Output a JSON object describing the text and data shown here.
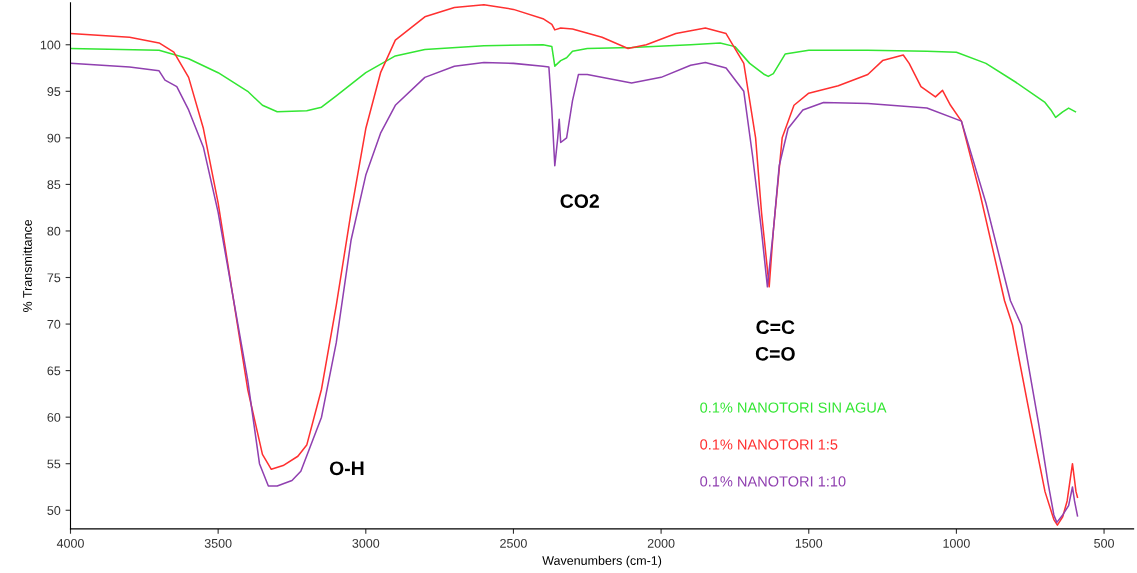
{
  "chart_data": {
    "type": "line",
    "xlabel": "Wavenumbers (cm-1)",
    "ylabel": "% Transmittance",
    "xlim": [
      4000,
      400
    ],
    "ylim": [
      48,
      104.5
    ],
    "xticks": [
      4000,
      3500,
      3000,
      2500,
      2000,
      1500,
      1000,
      500
    ],
    "yticks": [
      50,
      55,
      60,
      65,
      70,
      75,
      80,
      85,
      90,
      95,
      100
    ],
    "grid": false,
    "legend": "bottom right",
    "marker": "none",
    "line_style": "solid",
    "annotations": [
      "O-H",
      "CO2",
      "C=C\nC=O"
    ],
    "series": [
      {
        "name": "0.1% NANOTORI SIN AGUA",
        "color": "#33e633",
        "x": [
          4000,
          3700,
          3600,
          3500,
          3400,
          3350,
          3300,
          3200,
          3150,
          3100,
          3000,
          2900,
          2800,
          2600,
          2400,
          2370,
          2360,
          2340,
          2320,
          2300,
          2250,
          2100,
          1900,
          1800,
          1750,
          1700,
          1650,
          1637,
          1620,
          1580,
          1500,
          1300,
          1100,
          1000,
          900,
          800,
          700,
          680,
          664,
          640,
          620,
          597
        ],
        "values": [
          99.6,
          99.4,
          98.5,
          97,
          95,
          93.5,
          92.8,
          92.9,
          93.3,
          94.5,
          97,
          98.8,
          99.5,
          99.9,
          100,
          99.8,
          97.7,
          98.3,
          98.6,
          99.3,
          99.6,
          99.7,
          100,
          100.2,
          99.8,
          98,
          96.8,
          96.6,
          96.9,
          99,
          99.4,
          99.4,
          99.3,
          99.2,
          98,
          96,
          93.8,
          93,
          92.2,
          92.8,
          93.2,
          92.8
        ]
      },
      {
        "name": "0.1% NANOTORI 1:5",
        "color": "#ff3030",
        "x": [
          4000,
          3800,
          3700,
          3650,
          3600,
          3550,
          3500,
          3450,
          3400,
          3350,
          3320,
          3280,
          3230,
          3200,
          3150,
          3100,
          3050,
          3000,
          2950,
          2900,
          2800,
          2700,
          2600,
          2500,
          2400,
          2370,
          2360,
          2340,
          2300,
          2200,
          2112,
          2050,
          1950,
          1850,
          1780,
          1720,
          1680,
          1660,
          1634,
          1620,
          1590,
          1550,
          1500,
          1400,
          1300,
          1250,
          1180,
          1160,
          1120,
          1071,
          1047,
          1020,
          983,
          920,
          837,
          810,
          750,
          700,
          670,
          658,
          640,
          625,
          607,
          595,
          590
        ],
        "values": [
          101.2,
          100.8,
          100.2,
          99.2,
          96.5,
          91,
          83,
          73,
          63,
          56,
          54.4,
          54.8,
          55.8,
          57,
          63,
          72,
          82,
          91,
          97,
          100.5,
          103,
          104,
          104.3,
          103.8,
          102.8,
          102.2,
          101.6,
          101.8,
          101.7,
          100.8,
          99.6,
          100,
          101.2,
          101.8,
          101.2,
          98,
          90,
          82,
          74,
          80,
          90,
          93.5,
          94.8,
          95.6,
          96.8,
          98.3,
          98.9,
          98,
          95.5,
          94.4,
          95.1,
          93.5,
          91.8,
          84,
          72.5,
          69.9,
          60,
          52,
          49,
          48.4,
          49.3,
          51,
          55,
          52,
          51.4
        ]
      },
      {
        "name": "0.1% NANOTORI 1:10",
        "color": "#9040b0",
        "x": [
          4000,
          3800,
          3700,
          3680,
          3640,
          3600,
          3550,
          3500,
          3450,
          3400,
          3360,
          3330,
          3300,
          3250,
          3220,
          3150,
          3100,
          3050,
          3000,
          2950,
          2900,
          2800,
          2700,
          2600,
          2500,
          2400,
          2380,
          2370,
          2360,
          2350,
          2345,
          2340,
          2320,
          2300,
          2280,
          2250,
          2100,
          2000,
          1900,
          1850,
          1780,
          1720,
          1690,
          1660,
          1640,
          1620,
          1600,
          1570,
          1520,
          1450,
          1300,
          1100,
          983,
          900,
          817,
          780,
          720,
          690,
          670,
          660,
          640,
          620,
          607,
          600,
          590
        ],
        "values": [
          98,
          97.6,
          97.2,
          96.2,
          95.5,
          93,
          89,
          82,
          73,
          64,
          55,
          52.6,
          52.6,
          53.2,
          54.2,
          60,
          68,
          79,
          86,
          90.5,
          93.5,
          96.5,
          97.7,
          98.1,
          98,
          97.7,
          97.6,
          93,
          87,
          90,
          92,
          89.5,
          90,
          94,
          96.8,
          96.8,
          95.9,
          96.5,
          97.8,
          98.1,
          97.5,
          95,
          88,
          80,
          74,
          80,
          87,
          91,
          93,
          93.8,
          93.7,
          93.2,
          91.8,
          83,
          72.5,
          69.9,
          59,
          53,
          49.5,
          48.7,
          49.5,
          50.5,
          52.5,
          51,
          49.4
        ]
      }
    ]
  }
}
